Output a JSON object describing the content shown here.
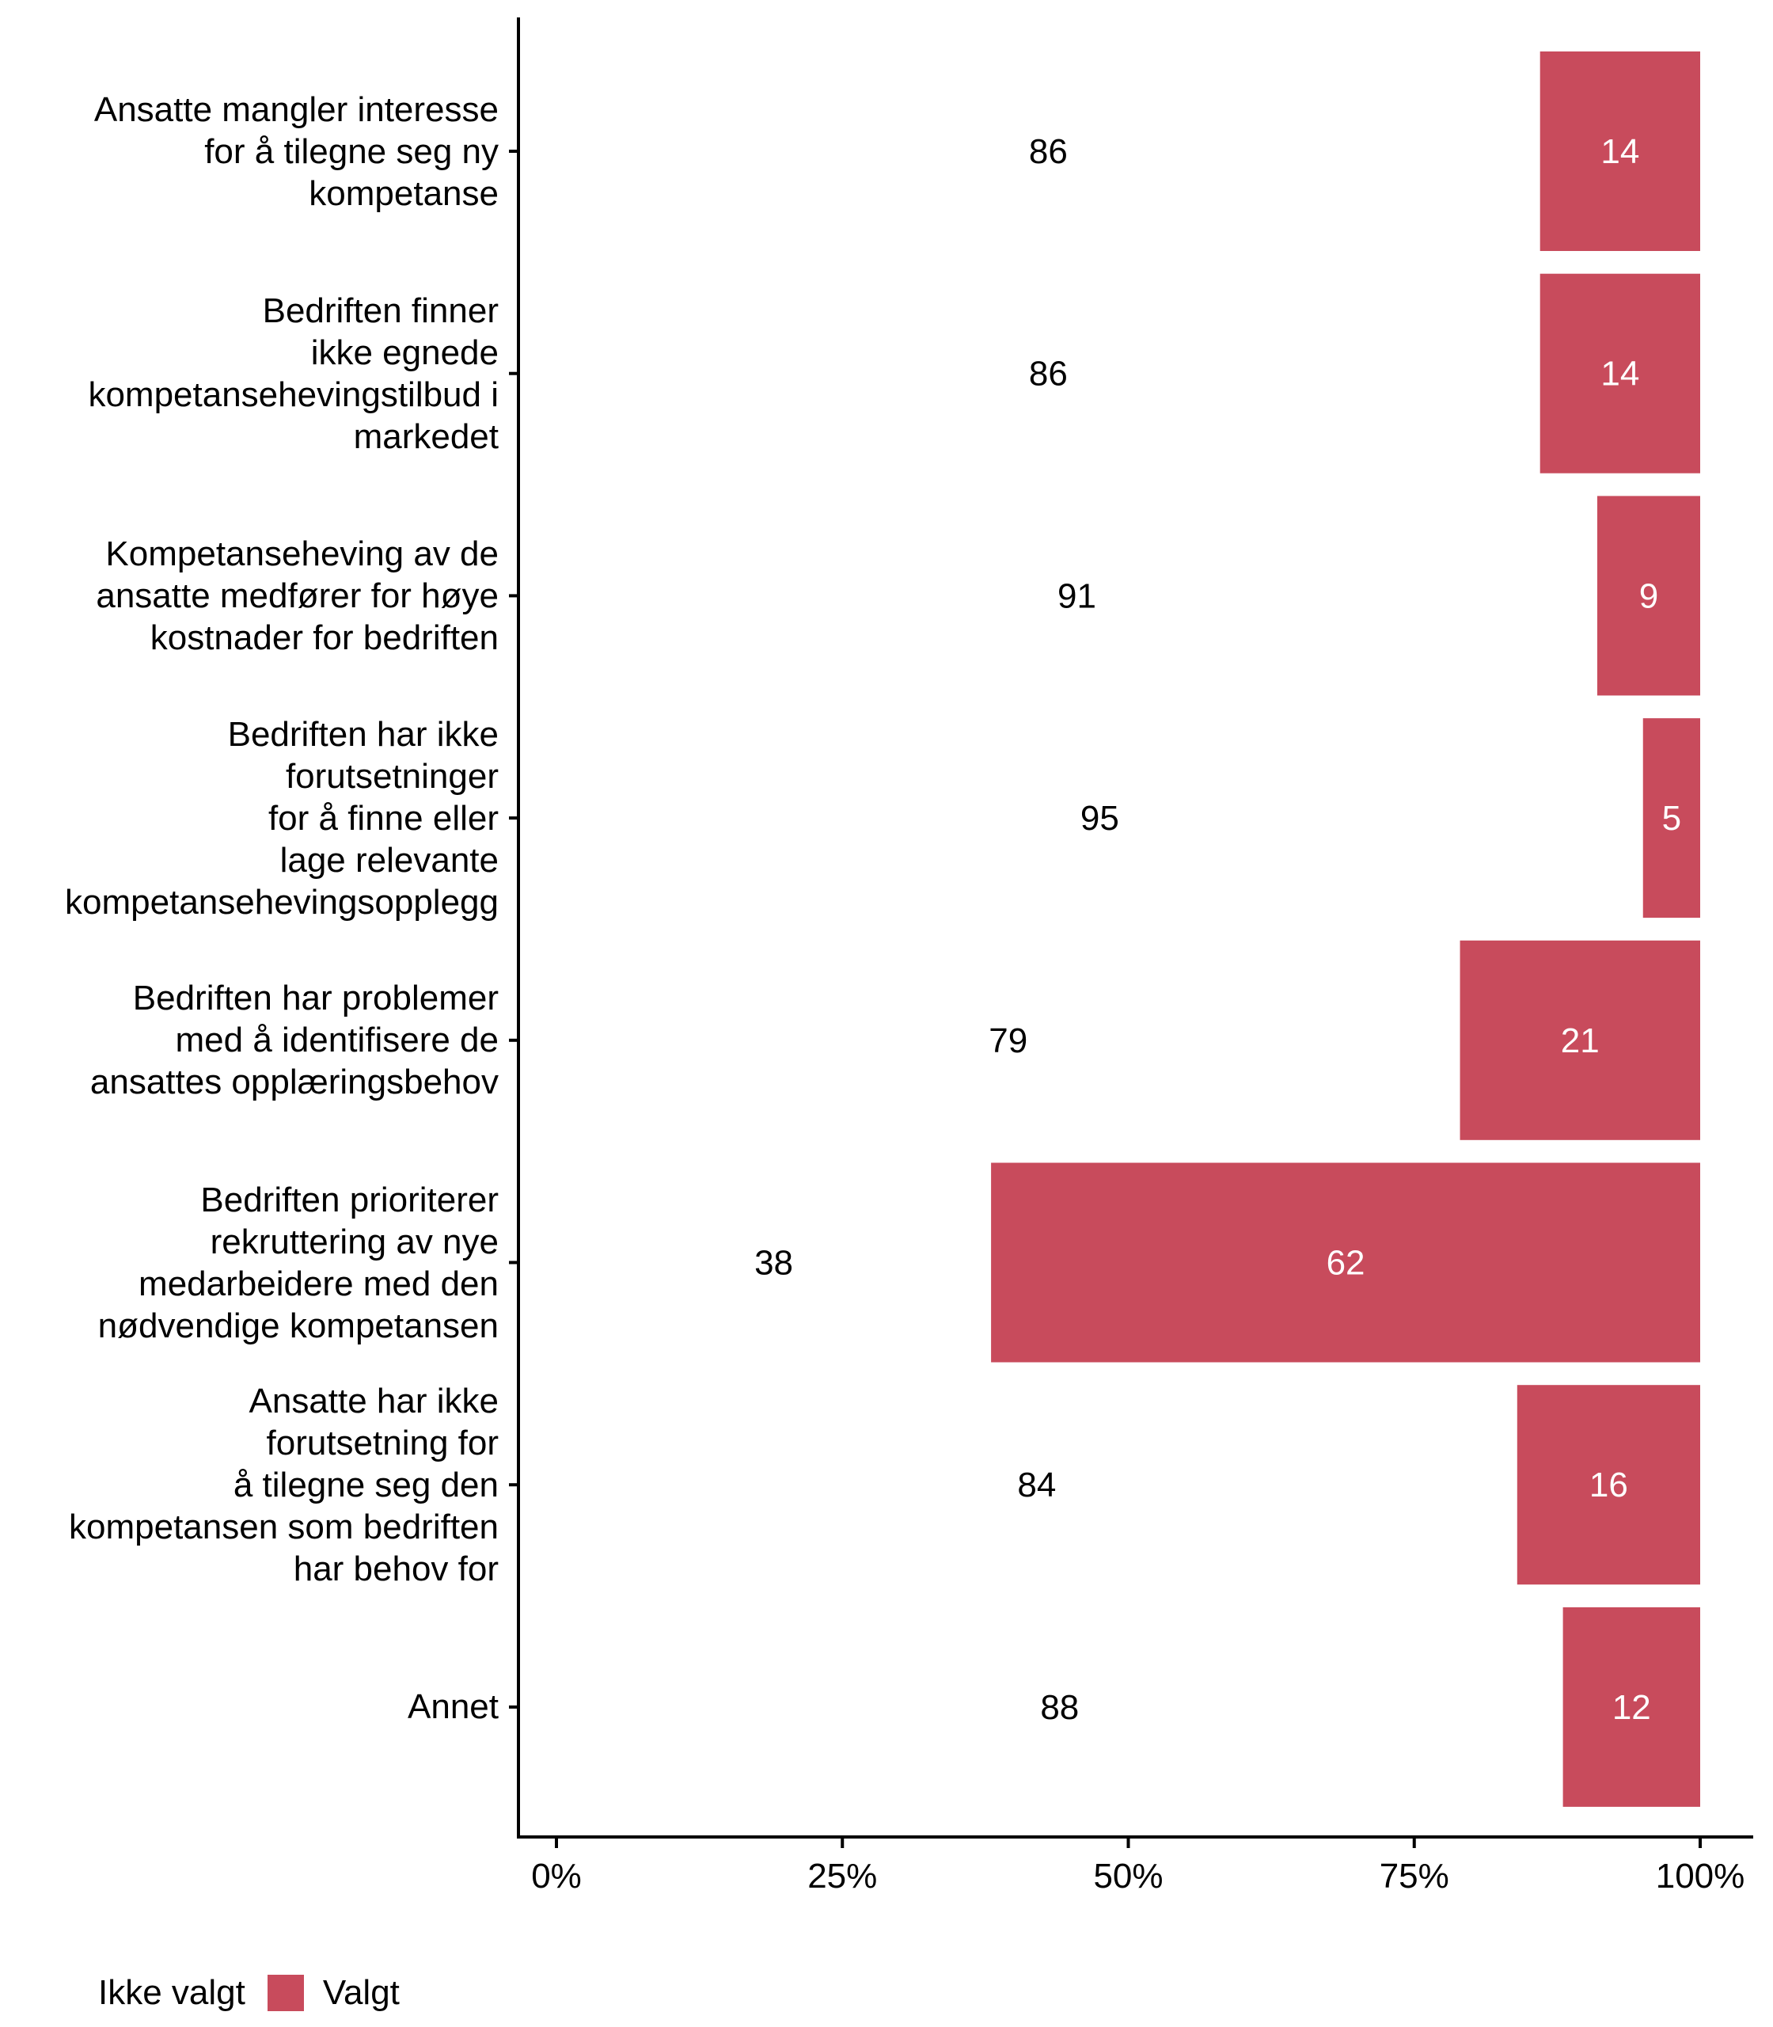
{
  "chart_data": {
    "type": "bar",
    "orientation": "horizontal",
    "stacked": true,
    "percent": true,
    "title": "",
    "xlabel": "",
    "ylabel": "",
    "xlim": [
      0,
      100
    ],
    "x_ticks": [
      "0%",
      "25%",
      "50%",
      "75%",
      "100%"
    ],
    "x_tick_values": [
      0,
      25,
      50,
      75,
      100
    ],
    "grid": false,
    "categories": [
      "Ansatte mangler interesse\nfor å tilegne seg ny\nkompetanse",
      "Bedriften finner\nikke egnede\nkompetansehevingstilbud i\nmarkedet",
      "Kompetanseheving av de\nansatte medfører for høye\nkostnader for bedriften",
      "Bedriften har ikke\nforutsetninger\nfor å finne eller\nlage relevante\nkompetansehevingsopplegg",
      "Bedriften har problemer\nmed å identifisere de\nansattes opplæringsbehov",
      "Bedriften prioriterer\nrekruttering av nye\nmedarbeidere med den\nnødvendige kompetansen",
      "Ansatte har ikke\nforutsetning for\nå tilegne seg den\nkompetansen som bedriften\nhar behov for",
      "Annet"
    ],
    "series": [
      {
        "name": "Ikke valgt",
        "color": "#FFFFFF",
        "label_color": "#000000",
        "values": [
          86,
          86,
          91,
          95,
          79,
          38,
          84,
          88
        ]
      },
      {
        "name": "Valgt",
        "color": "#C84B5C",
        "label_color": "#FFFFFF",
        "values": [
          14,
          14,
          9,
          5,
          21,
          62,
          16,
          12
        ]
      }
    ],
    "legend": {
      "position": "bottom-left",
      "entries": [
        "Ikke valgt",
        "Valgt"
      ]
    }
  }
}
